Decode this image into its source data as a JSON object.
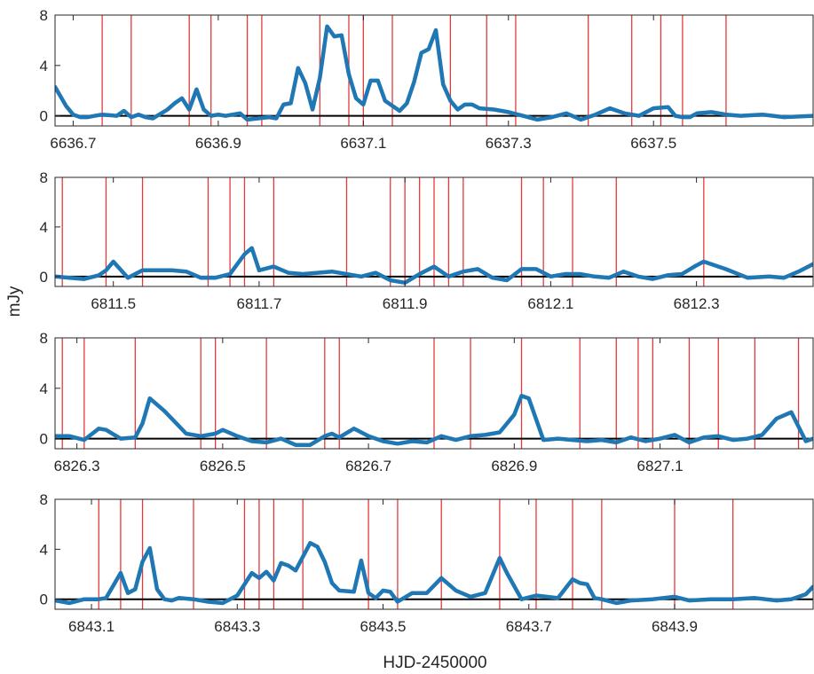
{
  "figure": {
    "xlabel": "HJD-2450000",
    "ylabel": "mJy",
    "colors": {
      "line": "#1f77b4",
      "markers": "#e33b3b",
      "zero": "#000000",
      "axes": "#262626"
    }
  },
  "chart_data": [
    {
      "type": "line",
      "xlim": [
        6636.675,
        6637.72
      ],
      "ylim": [
        -0.8,
        8
      ],
      "xticks": [
        6636.7,
        6636.9,
        6637.1,
        6637.3,
        6637.5
      ],
      "xtick_labels": [
        "6636.7",
        "6636.9",
        "6637.1",
        "6637.3",
        "6637.5"
      ],
      "yticks": [
        0,
        4,
        8
      ],
      "ytick_labels": [
        "0",
        "4",
        "8"
      ],
      "x": [
        6636.675,
        6636.69,
        6636.7,
        6636.71,
        6636.72,
        6636.73,
        6636.74,
        6636.76,
        6636.77,
        6636.78,
        6636.79,
        6636.8,
        6636.81,
        6636.83,
        6636.84,
        6636.85,
        6636.86,
        6636.87,
        6636.88,
        6636.89,
        6636.9,
        6636.91,
        6636.92,
        6636.93,
        6636.94,
        6636.97,
        6636.98,
        6636.99,
        6637.0,
        6637.01,
        6637.02,
        6637.03,
        6637.04,
        6637.05,
        6637.06,
        6637.07,
        6637.08,
        6637.09,
        6637.1,
        6637.11,
        6637.12,
        6637.13,
        6637.14,
        6637.15,
        6637.16,
        6637.17,
        6637.18,
        6637.19,
        6637.2,
        6637.21,
        6637.22,
        6637.23,
        6637.24,
        6637.25,
        6637.26,
        6637.28,
        6637.3,
        6637.32,
        6637.34,
        6637.36,
        6637.38,
        6637.4,
        6637.42,
        6637.44,
        6637.46,
        6637.48,
        6637.5,
        6637.52,
        6637.53,
        6637.54,
        6637.55,
        6637.56,
        6637.58,
        6637.6,
        6637.62,
        6637.65,
        6637.68,
        6637.72
      ],
      "y": [
        2.3,
        0.8,
        0.1,
        -0.1,
        -0.1,
        0.0,
        0.1,
        0.0,
        0.4,
        -0.1,
        0.1,
        -0.1,
        -0.2,
        0.5,
        1.0,
        1.4,
        0.5,
        2.1,
        0.5,
        0.0,
        0.1,
        0.0,
        0.1,
        0.2,
        -0.3,
        -0.1,
        -0.2,
        0.9,
        1.0,
        3.8,
        2.6,
        0.5,
        3.0,
        7.1,
        6.3,
        6.4,
        3.3,
        1.4,
        0.9,
        2.8,
        2.8,
        1.2,
        0.8,
        0.4,
        1.0,
        2.7,
        5.0,
        5.3,
        6.8,
        2.5,
        1.2,
        0.5,
        0.9,
        0.9,
        0.6,
        0.5,
        0.3,
        0.0,
        -0.3,
        -0.1,
        0.2,
        -0.3,
        0.1,
        0.6,
        0.2,
        0.0,
        0.6,
        0.7,
        0.0,
        -0.1,
        -0.1,
        0.2,
        0.3,
        0.1,
        0.0,
        0.1,
        -0.1,
        0.0
      ],
      "markers": [
        6636.74,
        6636.78,
        6636.86,
        6636.89,
        6636.94,
        6636.96,
        6637.04,
        6637.08,
        6637.1,
        6637.14,
        6637.22,
        6637.27,
        6637.31,
        6637.41,
        6637.47,
        6637.51,
        6637.54,
        6637.6
      ]
    },
    {
      "type": "line",
      "xlim": [
        6811.42,
        6812.46
      ],
      "ylim": [
        -0.8,
        8
      ],
      "xticks": [
        6811.5,
        6811.7,
        6811.9,
        6812.1,
        6812.3
      ],
      "xtick_labels": [
        "6811.5",
        "6811.7",
        "6811.9",
        "6812.1",
        "6812.3"
      ],
      "yticks": [
        0,
        4,
        8
      ],
      "ytick_labels": [
        "0",
        "4",
        "8"
      ],
      "x": [
        6811.42,
        6811.44,
        6811.46,
        6811.48,
        6811.49,
        6811.5,
        6811.52,
        6811.54,
        6811.56,
        6811.58,
        6811.6,
        6811.62,
        6811.64,
        6811.66,
        6811.67,
        6811.68,
        6811.69,
        6811.7,
        6811.72,
        6811.74,
        6811.76,
        6811.8,
        6811.84,
        6811.86,
        6811.88,
        6811.9,
        6811.92,
        6811.94,
        6811.96,
        6811.98,
        6812.0,
        6812.02,
        6812.04,
        6812.06,
        6812.08,
        6812.1,
        6812.12,
        6812.14,
        6812.16,
        6812.18,
        6812.2,
        6812.22,
        6812.24,
        6812.26,
        6812.28,
        6812.3,
        6812.31,
        6812.34,
        6812.37,
        6812.4,
        6812.42,
        6812.44,
        6812.46
      ],
      "y": [
        0.0,
        -0.1,
        -0.2,
        0.1,
        0.5,
        1.2,
        -0.1,
        0.5,
        0.5,
        0.5,
        0.4,
        -0.1,
        -0.1,
        0.2,
        1.0,
        1.8,
        2.3,
        0.5,
        0.8,
        0.3,
        0.2,
        0.4,
        0.0,
        0.3,
        -0.3,
        -0.5,
        0.2,
        0.8,
        0.0,
        0.4,
        0.6,
        -0.1,
        -0.3,
        0.6,
        0.6,
        0.0,
        0.2,
        0.2,
        0.0,
        -0.1,
        0.4,
        0.0,
        -0.2,
        0.1,
        0.2,
        0.9,
        1.2,
        0.6,
        -0.1,
        0.0,
        -0.1,
        0.4,
        1.0
      ],
      "markers": [
        6811.43,
        6811.49,
        6811.54,
        6811.63,
        6811.66,
        6811.68,
        6811.72,
        6811.82,
        6811.88,
        6811.9,
        6811.92,
        6811.94,
        6811.96,
        6811.98,
        6812.06,
        6812.09,
        6812.13,
        6812.19,
        6812.31
      ]
    },
    {
      "type": "line",
      "xlim": [
        6826.27,
        6827.31
      ],
      "ylim": [
        -0.8,
        8
      ],
      "xticks": [
        6826.3,
        6826.5,
        6826.7,
        6826.9,
        6827.1
      ],
      "xtick_labels": [
        "6826.3",
        "6826.5",
        "6826.7",
        "6826.9",
        "6827.1"
      ],
      "yticks": [
        0,
        4,
        8
      ],
      "ytick_labels": [
        "0",
        "4",
        "8"
      ],
      "x": [
        6826.27,
        6826.29,
        6826.31,
        6826.33,
        6826.34,
        6826.36,
        6826.38,
        6826.39,
        6826.4,
        6826.42,
        6826.43,
        6826.45,
        6826.47,
        6826.49,
        6826.5,
        6826.52,
        6826.54,
        6826.56,
        6826.58,
        6826.6,
        6826.62,
        6826.64,
        6826.65,
        6826.66,
        6826.68,
        6826.7,
        6826.72,
        6826.74,
        6826.76,
        6826.78,
        6826.8,
        6826.82,
        6826.84,
        6826.86,
        6826.88,
        6826.9,
        6826.91,
        6826.92,
        6826.94,
        6826.96,
        6826.98,
        6827.0,
        6827.02,
        6827.04,
        6827.06,
        6827.08,
        6827.1,
        6827.12,
        6827.14,
        6827.16,
        6827.18,
        6827.2,
        6827.22,
        6827.24,
        6827.26,
        6827.28,
        6827.3,
        6827.31
      ],
      "y": [
        0.2,
        0.2,
        -0.1,
        0.8,
        0.7,
        0.0,
        0.1,
        1.2,
        3.2,
        2.2,
        1.6,
        0.4,
        0.2,
        0.4,
        0.7,
        0.2,
        -0.2,
        -0.3,
        0.0,
        -0.5,
        -0.5,
        0.2,
        0.4,
        0.1,
        0.8,
        0.2,
        -0.2,
        -0.4,
        -0.2,
        -0.3,
        0.2,
        -0.1,
        0.2,
        0.3,
        0.5,
        1.9,
        3.4,
        3.2,
        -0.1,
        0.0,
        -0.1,
        -0.2,
        -0.1,
        -0.3,
        0.1,
        -0.2,
        0.0,
        0.3,
        -0.3,
        0.1,
        0.2,
        -0.1,
        0.0,
        0.3,
        1.6,
        2.1,
        -0.2,
        0.0
      ],
      "markers": [
        6826.28,
        6826.31,
        6826.38,
        6826.47,
        6826.49,
        6826.56,
        6826.64,
        6826.66,
        6826.79,
        6826.84,
        6826.91,
        6826.99,
        6827.04,
        6827.07,
        6827.09,
        6827.14,
        6827.18,
        6827.23,
        6827.29
      ]
    },
    {
      "type": "line",
      "xlim": [
        6843.05,
        6844.09
      ],
      "ylim": [
        -0.8,
        8
      ],
      "xticks": [
        6843.1,
        6843.3,
        6843.5,
        6843.7,
        6843.9
      ],
      "xtick_labels": [
        "6843.1",
        "6843.3",
        "6843.5",
        "6843.7",
        "6843.9"
      ],
      "yticks": [
        0,
        4,
        8
      ],
      "ytick_labels": [
        "0",
        "4",
        "8"
      ],
      "x": [
        6843.05,
        6843.07,
        6843.09,
        6843.11,
        6843.12,
        6843.14,
        6843.15,
        6843.16,
        6843.17,
        6843.18,
        6843.19,
        6843.2,
        6843.21,
        6843.22,
        6843.24,
        6843.26,
        6843.28,
        6843.3,
        6843.32,
        6843.33,
        6843.34,
        6843.35,
        6843.36,
        6843.37,
        6843.38,
        6843.39,
        6843.4,
        6843.41,
        6843.42,
        6843.43,
        6843.44,
        6843.46,
        6843.47,
        6843.48,
        6843.49,
        6843.5,
        6843.51,
        6843.52,
        6843.54,
        6843.56,
        6843.58,
        6843.6,
        6843.62,
        6843.64,
        6843.66,
        6843.67,
        6843.69,
        6843.71,
        6843.74,
        6843.76,
        6843.77,
        6843.78,
        6843.79,
        6843.8,
        6843.82,
        6843.84,
        6843.87,
        6843.9,
        6843.92,
        6843.95,
        6843.98,
        6844.01,
        6844.04,
        6844.06,
        6844.08,
        6844.09
      ],
      "y": [
        -0.1,
        -0.3,
        0.0,
        0.0,
        0.1,
        2.1,
        0.5,
        0.8,
        3.0,
        4.1,
        0.8,
        0.0,
        -0.1,
        0.1,
        0.0,
        -0.2,
        -0.3,
        0.3,
        2.1,
        1.7,
        2.2,
        1.5,
        2.9,
        2.7,
        2.3,
        3.4,
        4.5,
        4.2,
        3.0,
        1.3,
        0.7,
        0.6,
        3.1,
        0.5,
        0.1,
        0.7,
        0.6,
        -0.2,
        0.5,
        0.5,
        1.7,
        0.7,
        0.2,
        0.5,
        3.3,
        2.1,
        0.0,
        0.3,
        0.1,
        1.6,
        1.3,
        1.2,
        0.1,
        0.0,
        -0.3,
        -0.1,
        0.0,
        0.2,
        -0.1,
        0.0,
        0.0,
        0.1,
        -0.1,
        0.0,
        0.4,
        1.0
      ],
      "markers": [
        6843.11,
        6843.14,
        6843.17,
        6843.24,
        6843.31,
        6843.33,
        6843.35,
        6843.39,
        6843.48,
        6843.52,
        6843.58,
        6843.66,
        6843.71,
        6843.76,
        6843.8,
        6843.9,
        6843.98
      ]
    }
  ]
}
